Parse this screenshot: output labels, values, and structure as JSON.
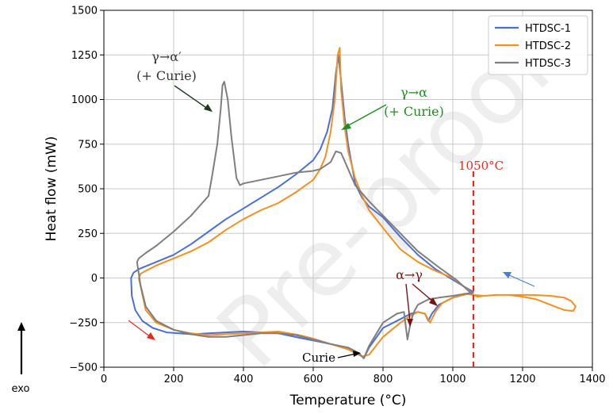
{
  "chart_data": {
    "type": "line",
    "xlabel": "Temperature (°C)",
    "ylabel": "Heat flow (mW)",
    "xlim": [
      0,
      1400
    ],
    "ylim": [
      -500,
      1500
    ],
    "xticks": [
      0,
      200,
      400,
      600,
      800,
      1000,
      1200,
      1400
    ],
    "yticks": [
      -500,
      -250,
      0,
      250,
      500,
      750,
      1000,
      1250,
      1500
    ],
    "grid": true,
    "legend_position": "top-right",
    "series": [
      {
        "name": "HTDSC-1",
        "color": "#4a6fd8",
        "x": [
          1060,
          1000,
          950,
          900,
          850,
          800,
          760,
          740,
          720,
          700,
          690,
          680,
          672,
          665,
          655,
          640,
          620,
          600,
          550,
          500,
          450,
          400,
          350,
          300,
          250,
          200,
          150,
          100,
          85,
          78,
          80,
          90,
          110,
          140,
          180,
          250,
          300,
          400,
          500,
          560,
          600,
          650,
          700,
          730,
          745,
          760,
          800,
          850,
          880,
          900,
          920,
          930,
          940,
          960,
          1000,
          1040,
          1050,
          1060
        ],
        "y": [
          -80,
          -10,
          50,
          130,
          230,
          340,
          400,
          450,
          530,
          750,
          900,
          1100,
          1250,
          1150,
          950,
          820,
          720,
          660,
          580,
          510,
          450,
          390,
          330,
          260,
          190,
          130,
          90,
          50,
          30,
          0,
          -100,
          -180,
          -240,
          -280,
          -305,
          -315,
          -310,
          -300,
          -310,
          -335,
          -350,
          -370,
          -390,
          -420,
          -450,
          -390,
          -280,
          -230,
          -200,
          -190,
          -200,
          -240,
          -200,
          -150,
          -110,
          -90,
          -85,
          -80
        ]
      },
      {
        "name": "HTDSC-2",
        "color": "#f5901e",
        "x": [
          1340,
          1352,
          1345,
          1320,
          1280,
          1240,
          1200,
          1160,
          1120,
          1090,
          1070,
          1060,
          1040,
          1000,
          950,
          900,
          850,
          800,
          760,
          740,
          720,
          700,
          690,
          680,
          676,
          670,
          662,
          650,
          635,
          620,
          600,
          550,
          500,
          450,
          400,
          350,
          300,
          250,
          200,
          150,
          120,
          106,
          100,
          120,
          150,
          200,
          250,
          300,
          400,
          500,
          560,
          600,
          650,
          700,
          740,
          760,
          800,
          850,
          880,
          900,
          920,
          935,
          950,
          970,
          1000,
          1040,
          1060,
          1090,
          1130,
          1180,
          1230,
          1280,
          1320,
          1340
        ],
        "y": [
          -130,
          -160,
          -185,
          -180,
          -150,
          -120,
          -105,
          -95,
          -95,
          -100,
          -105,
          -95,
          -60,
          0,
          40,
          90,
          160,
          280,
          380,
          460,
          560,
          710,
          850,
          1050,
          1290,
          1250,
          1000,
          820,
          680,
          610,
          550,
          480,
          420,
          380,
          330,
          270,
          200,
          150,
          110,
          70,
          40,
          25,
          0,
          -180,
          -250,
          -290,
          -310,
          -320,
          -310,
          -300,
          -320,
          -340,
          -370,
          -400,
          -440,
          -430,
          -330,
          -250,
          -210,
          -190,
          -200,
          -250,
          -190,
          -140,
          -110,
          -90,
          -95,
          -100,
          -95,
          -95,
          -95,
          -100,
          -110,
          -130
        ]
      },
      {
        "name": "HTDSC-3",
        "color": "#7f7f7f",
        "x": [
          1055,
          1010,
          960,
          900,
          850,
          800,
          760,
          720,
          700,
          680,
          665,
          650,
          620,
          600,
          550,
          500,
          450,
          400,
          390,
          380,
          365,
          355,
          345,
          340,
          335,
          325,
          310,
          300,
          250,
          200,
          150,
          120,
          100,
          95,
          105,
          120,
          150,
          200,
          250,
          300,
          350,
          400,
          450,
          500,
          550,
          600,
          650,
          700,
          730,
          745,
          760,
          800,
          840,
          860,
          870,
          880,
          890,
          900,
          930,
          960,
          1000,
          1030,
          1050,
          1055
        ],
        "y": [
          -90,
          -10,
          60,
          150,
          250,
          350,
          430,
          520,
          610,
          700,
          710,
          650,
          610,
          600,
          590,
          570,
          550,
          530,
          520,
          560,
          800,
          1000,
          1100,
          1080,
          950,
          750,
          570,
          460,
          350,
          260,
          180,
          140,
          110,
          90,
          -40,
          -160,
          -240,
          -290,
          -315,
          -330,
          -330,
          -320,
          -310,
          -310,
          -320,
          -345,
          -370,
          -390,
          -420,
          -450,
          -380,
          -250,
          -200,
          -190,
          -345,
          -240,
          -185,
          -150,
          -120,
          -110,
          -100,
          -90,
          -85,
          -90
        ]
      }
    ],
    "annotations": [
      {
        "text_line1": "γ→α′",
        "text_line2": "(+ Curie)",
        "color": "#333333"
      },
      {
        "text_line1": "γ→α",
        "text_line2": "(+ Curie)",
        "color": "#1a8f1a"
      },
      {
        "text": "1050°C",
        "color": "#e8291c",
        "x": 1055
      },
      {
        "text": "α→γ",
        "color": "#7a1212"
      },
      {
        "text": "Curie",
        "color": "#000000"
      }
    ],
    "side_label": "exo",
    "watermark": "Pre-proof"
  }
}
